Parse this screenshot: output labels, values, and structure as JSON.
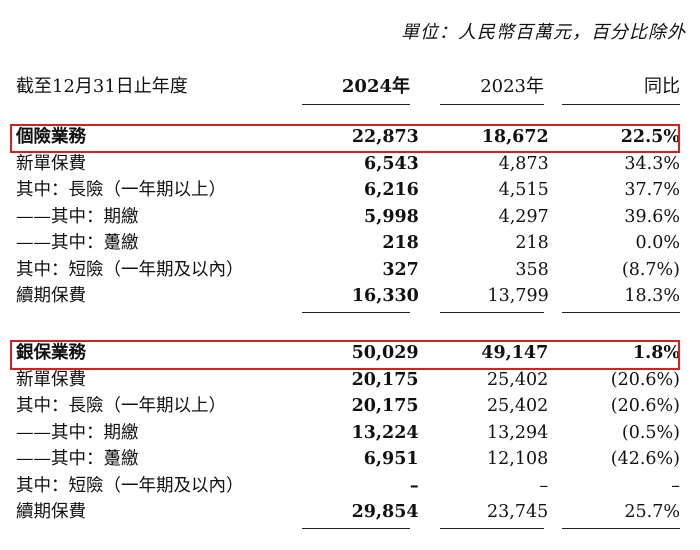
{
  "unit_note": "單位：人民幣百萬元，百分比除外",
  "header": {
    "period_label": "截至12月31日止年度",
    "col_2024": "2024年",
    "col_2023": "2023年",
    "col_yoy": "同比"
  },
  "individual": [
    {
      "label": "個險業務",
      "v2024": "22,873",
      "v2023": "18,672",
      "yoy": "22.5%"
    },
    {
      "label": "新單保費",
      "v2024": "6,543",
      "v2023": "4,873",
      "yoy": "34.3%"
    },
    {
      "label": "其中：長險（一年期以上）",
      "v2024": "6,216",
      "v2023": "4,515",
      "yoy": "37.7%"
    },
    {
      "label": "——其中：期繳",
      "v2024": "5,998",
      "v2023": "4,297",
      "yoy": "39.6%"
    },
    {
      "label": "——其中：躉繳",
      "v2024": "218",
      "v2023": "218",
      "yoy": "0.0%"
    },
    {
      "label": "其中：短險（一年期及以內）",
      "v2024": "327",
      "v2023": "358",
      "yoy": "(8.7%)"
    },
    {
      "label": "續期保費",
      "v2024": "16,330",
      "v2023": "13,799",
      "yoy": "18.3%"
    }
  ],
  "bancassurance": [
    {
      "label": "銀保業務",
      "v2024": "50,029",
      "v2023": "49,147",
      "yoy": "1.8%"
    },
    {
      "label": "新單保費",
      "v2024": "20,175",
      "v2023": "25,402",
      "yoy": "(20.6%)"
    },
    {
      "label": "其中：長險（一年期以上）",
      "v2024": "20,175",
      "v2023": "25,402",
      "yoy": "(20.6%)"
    },
    {
      "label": "——其中：期繳",
      "v2024": "13,224",
      "v2023": "13,294",
      "yoy": "(0.5%)"
    },
    {
      "label": "——其中：躉繳",
      "v2024": "6,951",
      "v2023": "12,108",
      "yoy": "(42.6%)"
    },
    {
      "label": "其中：短險（一年期及以內）",
      "v2024": "–",
      "v2023": "–",
      "yoy": "–"
    },
    {
      "label": "續期保費",
      "v2024": "29,854",
      "v2023": "23,745",
      "yoy": "25.7%"
    }
  ],
  "colors": {
    "highlight": "#d42020",
    "text": "#111111"
  }
}
